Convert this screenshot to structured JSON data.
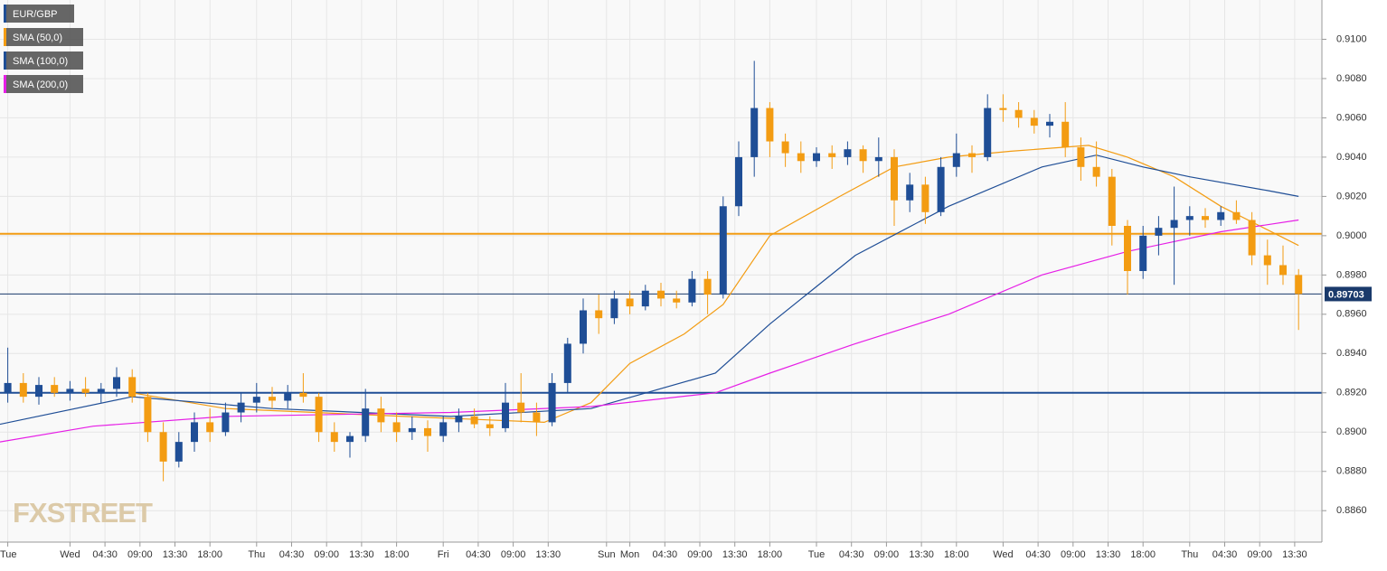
{
  "chart_data": {
    "type": "candlestick",
    "name": "EUR/GBP",
    "up_color": "#1f4e96",
    "down_color": "#f39c12",
    "watermark": "FXSTREET",
    "grid": true,
    "xlim": [
      0,
      170
    ],
    "ylim": [
      0.8844,
      0.912
    ],
    "xticks": [
      {
        "value": 1,
        "label": "Tue"
      },
      {
        "value": 9,
        "label": "Wed"
      },
      {
        "value": 13.5,
        "label": "04:30"
      },
      {
        "value": 18,
        "label": "09:00"
      },
      {
        "value": 22.5,
        "label": "13:30"
      },
      {
        "value": 27,
        "label": "18:00"
      },
      {
        "value": 33,
        "label": "Thu"
      },
      {
        "value": 37.5,
        "label": "04:30"
      },
      {
        "value": 42,
        "label": "09:00"
      },
      {
        "value": 46.5,
        "label": "13:30"
      },
      {
        "value": 51,
        "label": "18:00"
      },
      {
        "value": 57,
        "label": "Fri"
      },
      {
        "value": 61.5,
        "label": "04:30"
      },
      {
        "value": 66,
        "label": "09:00"
      },
      {
        "value": 70.5,
        "label": "13:30"
      },
      {
        "value": 78,
        "label": "Sun"
      },
      {
        "value": 81,
        "label": "Mon"
      },
      {
        "value": 85.5,
        "label": "04:30"
      },
      {
        "value": 90,
        "label": "09:00"
      },
      {
        "value": 94.5,
        "label": "13:30"
      },
      {
        "value": 99,
        "label": "18:00"
      },
      {
        "value": 105,
        "label": "Tue"
      },
      {
        "value": 109.5,
        "label": "04:30"
      },
      {
        "value": 114,
        "label": "09:00"
      },
      {
        "value": 118.5,
        "label": "13:30"
      },
      {
        "value": 123,
        "label": "18:00"
      },
      {
        "value": 129,
        "label": "Wed"
      },
      {
        "value": 133.5,
        "label": "04:30"
      },
      {
        "value": 138,
        "label": "09:00"
      },
      {
        "value": 142.5,
        "label": "13:30"
      },
      {
        "value": 147,
        "label": "18:00"
      },
      {
        "value": 153,
        "label": "Thu"
      },
      {
        "value": 157.5,
        "label": "04:30"
      },
      {
        "value": 162,
        "label": "09:00"
      },
      {
        "value": 166.5,
        "label": "13:30"
      }
    ],
    "yticks": [
      {
        "value": 0.886,
        "label": "0.8860"
      },
      {
        "value": 0.888,
        "label": "0.8880"
      },
      {
        "value": 0.89,
        "label": "0.8900"
      },
      {
        "value": 0.892,
        "label": "0.8920"
      },
      {
        "value": 0.894,
        "label": "0.8940"
      },
      {
        "value": 0.896,
        "label": "0.8960"
      },
      {
        "value": 0.898,
        "label": "0.8980"
      },
      {
        "value": 0.9,
        "label": "0.9000"
      },
      {
        "value": 0.902,
        "label": "0.9020"
      },
      {
        "value": 0.904,
        "label": "0.9040"
      },
      {
        "value": 0.906,
        "label": "0.9060"
      },
      {
        "value": 0.908,
        "label": "0.9080"
      },
      {
        "value": 0.91,
        "label": "0.9100"
      }
    ],
    "x": [
      1,
      3,
      5,
      7,
      9,
      11,
      13,
      15,
      17,
      19,
      21,
      23,
      25,
      27,
      29,
      31,
      33,
      35,
      37,
      39,
      41,
      43,
      45,
      47,
      49,
      51,
      53,
      55,
      57,
      59,
      61,
      63,
      65,
      67,
      69,
      71,
      73,
      75,
      77,
      79,
      81,
      83,
      85,
      87,
      89,
      91,
      93,
      95,
      97,
      99,
      101,
      103,
      105,
      107,
      109,
      111,
      113,
      115,
      117,
      119,
      121,
      123,
      125,
      127,
      129,
      131,
      133,
      135,
      137,
      139,
      141,
      143,
      145,
      147,
      149,
      151,
      153,
      155,
      157,
      159,
      161,
      163,
      165,
      167
    ],
    "open": [
      0.892,
      0.8925,
      0.8918,
      0.8924,
      0.892,
      0.8922,
      0.892,
      0.8922,
      0.8928,
      0.8918,
      0.89,
      0.8885,
      0.8895,
      0.8905,
      0.89,
      0.891,
      0.8915,
      0.8918,
      0.8916,
      0.892,
      0.8918,
      0.89,
      0.8895,
      0.8898,
      0.8912,
      0.8905,
      0.89,
      0.8902,
      0.8898,
      0.8905,
      0.8908,
      0.8904,
      0.8902,
      0.8915,
      0.891,
      0.8905,
      0.8925,
      0.8945,
      0.8962,
      0.8958,
      0.8968,
      0.8964,
      0.8972,
      0.8968,
      0.8966,
      0.8978,
      0.897,
      0.9015,
      0.904,
      0.9065,
      0.9048,
      0.9042,
      0.9038,
      0.9042,
      0.904,
      0.9044,
      0.9038,
      0.904,
      0.9018,
      0.9026,
      0.9012,
      0.9035,
      0.9042,
      0.904,
      0.9065,
      0.9064,
      0.906,
      0.9056,
      0.9058,
      0.9045,
      0.9035,
      0.903,
      0.9005,
      0.8982,
      0.9,
      0.9004,
      0.9008,
      0.901,
      0.9008,
      0.9012,
      0.9008,
      0.899,
      0.8985,
      0.898
    ],
    "high": [
      0.8943,
      0.893,
      0.8928,
      0.8928,
      0.8926,
      0.8928,
      0.8925,
      0.8933,
      0.8932,
      0.892,
      0.8905,
      0.89,
      0.891,
      0.8912,
      0.8915,
      0.892,
      0.8925,
      0.8923,
      0.8924,
      0.893,
      0.892,
      0.8905,
      0.89,
      0.8922,
      0.8918,
      0.891,
      0.8908,
      0.8906,
      0.8908,
      0.8912,
      0.8912,
      0.8908,
      0.8925,
      0.893,
      0.8915,
      0.893,
      0.8948,
      0.8968,
      0.897,
      0.8972,
      0.8972,
      0.8975,
      0.8976,
      0.8972,
      0.8982,
      0.8982,
      0.902,
      0.9048,
      0.9089,
      0.9068,
      0.9052,
      0.9048,
      0.9045,
      0.9046,
      0.9048,
      0.9046,
      0.905,
      0.9044,
      0.9032,
      0.903,
      0.904,
      0.9052,
      0.9046,
      0.9072,
      0.9072,
      0.9068,
      0.9064,
      0.9062,
      0.9068,
      0.905,
      0.9048,
      0.9034,
      0.9008,
      0.9005,
      0.901,
      0.9025,
      0.9015,
      0.9014,
      0.9015,
      0.9018,
      0.9012,
      0.8998,
      0.8995,
      0.8983
    ],
    "low": [
      0.8915,
      0.8915,
      0.8914,
      0.8918,
      0.8916,
      0.8918,
      0.8915,
      0.8918,
      0.8915,
      0.8895,
      0.8875,
      0.8882,
      0.889,
      0.8895,
      0.8898,
      0.8905,
      0.891,
      0.8912,
      0.8912,
      0.8915,
      0.8895,
      0.889,
      0.8887,
      0.8895,
      0.89,
      0.8895,
      0.8896,
      0.889,
      0.8895,
      0.89,
      0.8902,
      0.8898,
      0.89,
      0.8905,
      0.8898,
      0.8903,
      0.892,
      0.894,
      0.895,
      0.8955,
      0.896,
      0.8962,
      0.8964,
      0.8963,
      0.8964,
      0.896,
      0.8968,
      0.901,
      0.903,
      0.904,
      0.9035,
      0.9032,
      0.9035,
      0.9034,
      0.9036,
      0.9032,
      0.903,
      0.9005,
      0.9012,
      0.9006,
      0.901,
      0.903,
      0.9032,
      0.9038,
      0.9058,
      0.9055,
      0.9052,
      0.905,
      0.904,
      0.9028,
      0.9025,
      0.8995,
      0.897,
      0.8978,
      0.899,
      0.8975,
      0.9,
      0.9004,
      0.9005,
      0.9006,
      0.8985,
      0.8975,
      0.8975,
      0.8952
    ],
    "close": [
      0.8925,
      0.8918,
      0.8924,
      0.892,
      0.8922,
      0.892,
      0.8922,
      0.8928,
      0.8918,
      0.89,
      0.8885,
      0.8895,
      0.8905,
      0.89,
      0.891,
      0.8915,
      0.8918,
      0.8916,
      0.892,
      0.8918,
      0.89,
      0.8895,
      0.8898,
      0.8912,
      0.8905,
      0.89,
      0.8902,
      0.8898,
      0.8905,
      0.8908,
      0.8904,
      0.8902,
      0.8915,
      0.891,
      0.8905,
      0.8925,
      0.8945,
      0.8962,
      0.8958,
      0.8968,
      0.8964,
      0.8972,
      0.8968,
      0.8966,
      0.8978,
      0.897,
      0.9015,
      0.904,
      0.9065,
      0.9048,
      0.9042,
      0.9038,
      0.9042,
      0.904,
      0.9044,
      0.9038,
      0.904,
      0.9018,
      0.9026,
      0.9012,
      0.9035,
      0.9042,
      0.904,
      0.9065,
      0.9064,
      0.906,
      0.9056,
      0.9058,
      0.9045,
      0.9035,
      0.903,
      0.9005,
      0.8982,
      0.9,
      0.9004,
      0.9008,
      0.901,
      0.9008,
      0.9012,
      0.9008,
      0.899,
      0.8985,
      0.898,
      0.89703
    ],
    "overlays": [
      {
        "name": "SMA (50,0)",
        "color": "#f39c12",
        "x": [
          17,
          29,
          52,
          70,
          76,
          81,
          88,
          93,
          99,
          108,
          115,
          122,
          130,
          140,
          145,
          151,
          157,
          162,
          167
        ],
        "values": [
          0.892,
          0.8912,
          0.8908,
          0.8905,
          0.8915,
          0.8935,
          0.895,
          0.8965,
          0.9,
          0.902,
          0.9035,
          0.904,
          0.9043,
          0.9046,
          0.904,
          0.903,
          0.9015,
          0.9005,
          0.8995
        ]
      },
      {
        "name": "SMA (100,0)",
        "color": "#1f4e96",
        "x": [
          0,
          17,
          35,
          58,
          76,
          92,
          99,
          110,
          122,
          134,
          141,
          147,
          153,
          163,
          167
        ],
        "values": [
          0.8904,
          0.8918,
          0.8912,
          0.8908,
          0.8912,
          0.893,
          0.8955,
          0.899,
          0.9015,
          0.9035,
          0.9041,
          0.9035,
          0.903,
          0.9023,
          0.902
        ]
      },
      {
        "name": "SMA (200,0)",
        "color": "#e61ee6",
        "x": [
          0,
          12,
          29,
          58,
          76,
          92,
          99,
          110,
          122,
          134,
          145,
          157,
          167
        ],
        "values": [
          0.8895,
          0.8903,
          0.8908,
          0.891,
          0.8913,
          0.892,
          0.893,
          0.8945,
          0.896,
          0.898,
          0.8992,
          0.9002,
          0.9008
        ]
      }
    ],
    "levels": [
      {
        "value": 0.9001,
        "color": "#f39c12"
      },
      {
        "value": 0.892,
        "color": "#1f4e96"
      },
      {
        "value": 0.89703,
        "label": "0.89703",
        "color": "#1a3a6b"
      }
    ]
  }
}
